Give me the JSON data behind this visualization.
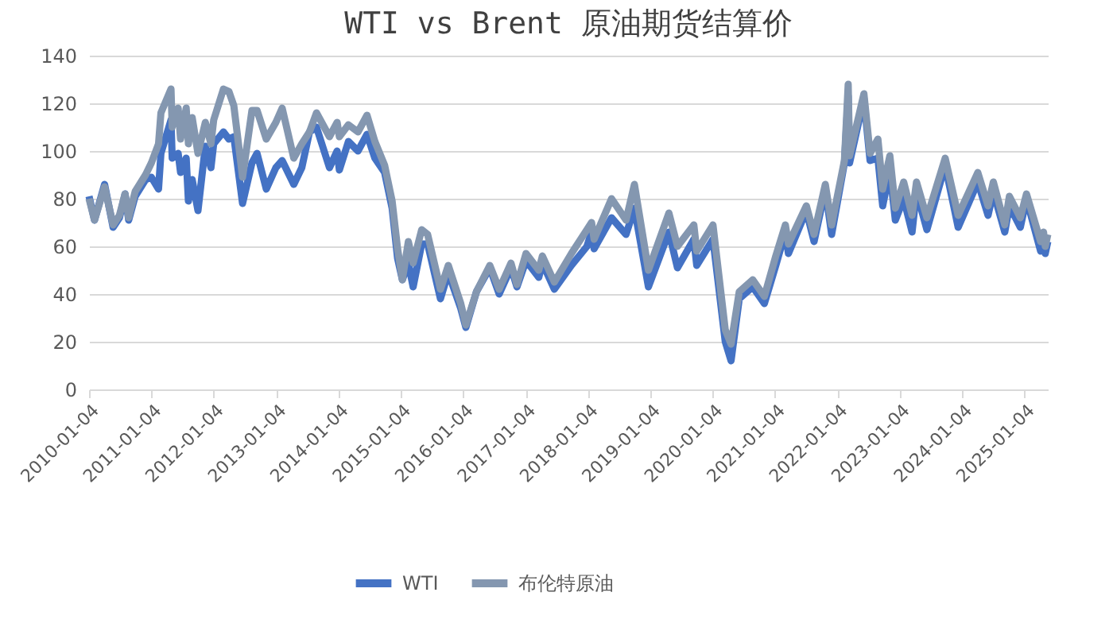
{
  "chart_data": {
    "type": "line",
    "title": "WTI vs Brent 原油期货结算价",
    "x": [
      "2010-01-04",
      "2010-02-05",
      "2010-04-05",
      "2010-05-25",
      "2010-07-01",
      "2010-08-03",
      "2010-08-24",
      "2010-10-01",
      "2010-12-01",
      "2011-01-04",
      "2011-02-15",
      "2011-03-01",
      "2011-04-29",
      "2011-05-06",
      "2011-06-10",
      "2011-06-24",
      "2011-07-27",
      "2011-08-09",
      "2011-08-31",
      "2011-10-04",
      "2011-11-16",
      "2011-12-19",
      "2012-01-04",
      "2012-03-01",
      "2012-04-02",
      "2012-05-01",
      "2012-06-21",
      "2012-08-15",
      "2012-09-14",
      "2012-11-07",
      "2013-01-02",
      "2013-02-08",
      "2013-04-17",
      "2013-06-03",
      "2013-07-18",
      "2013-08-28",
      "2013-11-12",
      "2013-12-27",
      "2014-01-09",
      "2014-03-03",
      "2014-04-28",
      "2014-06-20",
      "2014-08-05",
      "2014-10-01",
      "2014-11-14",
      "2014-12-16",
      "2015-01-13",
      "2015-02-17",
      "2015-03-17",
      "2015-05-06",
      "2015-06-10",
      "2015-08-24",
      "2015-10-09",
      "2015-12-21",
      "2016-01-20",
      "2016-03-22",
      "2016-06-08",
      "2016-08-02",
      "2016-10-10",
      "2016-11-14",
      "2017-01-06",
      "2017-03-22",
      "2017-04-12",
      "2017-06-21",
      "2017-09-29",
      "2017-12-29",
      "2018-01-25",
      "2018-02-09",
      "2018-05-22",
      "2018-08-15",
      "2018-10-03",
      "2018-12-24",
      "2019-04-23",
      "2019-06-12",
      "2019-09-16",
      "2019-10-03",
      "2020-01-06",
      "2020-03-18",
      "2020-04-21",
      "2020-06-08",
      "2020-08-26",
      "2020-11-02",
      "2021-01-08",
      "2021-03-05",
      "2021-03-23",
      "2021-07-06",
      "2021-08-20",
      "2021-10-25",
      "2021-12-01",
      "2022-02-14",
      "2022-03-08",
      "2022-03-16",
      "2022-06-08",
      "2022-07-14",
      "2022-08-29",
      "2022-09-26",
      "2022-11-07",
      "2022-12-09",
      "2023-01-27",
      "2023-03-17",
      "2023-04-12",
      "2023-06-12",
      "2023-09-27",
      "2023-12-12",
      "2024-04-05",
      "2024-06-04",
      "2024-07-05",
      "2024-09-10",
      "2024-10-07",
      "2024-12-10",
      "2025-01-15",
      "2025-04-08",
      "2025-04-25",
      "2025-05-05",
      "2025-05-20"
    ],
    "series": [
      {
        "name": "WTI",
        "color": "#4472c4",
        "values": [
          81,
          71,
          86,
          68,
          72,
          82,
          71,
          81,
          88,
          89,
          84,
          99,
          113,
          97,
          99,
          91,
          97,
          79,
          88,
          75,
          102,
          93,
          103,
          108,
          105,
          106,
          78,
          95,
          99,
          84,
          93,
          96,
          86,
          93,
          108,
          110,
          93,
          100,
          92,
          104,
          100,
          107,
          97,
          91,
          76,
          55,
          46,
          53,
          43,
          61,
          61,
          38,
          49,
          34,
          26,
          41,
          51,
          40,
          51,
          43,
          54,
          47,
          53,
          42,
          52,
          60,
          66,
          59,
          72,
          65,
          76,
          43,
          66,
          51,
          63,
          52,
          63,
          20,
          12,
          38,
          43,
          36,
          52,
          66,
          57,
          75,
          62,
          84,
          65,
          95,
          123,
          95,
          122,
          96,
          97,
          77,
          92,
          71,
          80,
          66,
          83,
          67,
          94,
          68,
          87,
          73,
          83,
          66,
          77,
          68,
          80,
          58,
          63,
          57,
          62
        ]
      },
      {
        "name": "布伦特原油",
        "color": "#8497b0",
        "values": [
          80,
          71,
          85,
          69,
          73,
          82,
          72,
          83,
          90,
          95,
          103,
          116,
          126,
          110,
          118,
          105,
          118,
          103,
          114,
          99,
          112,
          103,
          113,
          126,
          125,
          119,
          89,
          117,
          117,
          105,
          112,
          118,
          97,
          103,
          108,
          116,
          106,
          112,
          106,
          111,
          108,
          115,
          104,
          94,
          79,
          59,
          46,
          62,
          53,
          67,
          65,
          42,
          52,
          36,
          27,
          41,
          52,
          42,
          53,
          44,
          57,
          50,
          56,
          45,
          57,
          67,
          70,
          63,
          80,
          71,
          86,
          50,
          74,
          60,
          69,
          58,
          69,
          25,
          19,
          41,
          46,
          39,
          56,
          69,
          61,
          77,
          65,
          86,
          69,
          96,
          128,
          98,
          124,
          99,
          105,
          84,
          98,
          76,
          87,
          73,
          87,
          72,
          97,
          73,
          91,
          77,
          87,
          69,
          81,
          72,
          82,
          62,
          66,
          60,
          65
        ]
      }
    ],
    "xlim": [
      "2010-01-04",
      "2025-05-20"
    ],
    "xticks": [
      "2010-01-04",
      "2011-01-04",
      "2012-01-04",
      "2013-01-04",
      "2014-01-04",
      "2015-01-04",
      "2016-01-04",
      "2017-01-04",
      "2018-01-04",
      "2019-01-04",
      "2020-01-04",
      "2021-01-04",
      "2022-01-04",
      "2023-01-04",
      "2024-01-04",
      "2025-01-04"
    ],
    "ylim": [
      0,
      140
    ],
    "yticks": [
      0,
      20,
      40,
      60,
      80,
      100,
      120,
      140
    ],
    "grid": "y",
    "legend": "bottom",
    "marker": "none",
    "line_style": "solid"
  }
}
